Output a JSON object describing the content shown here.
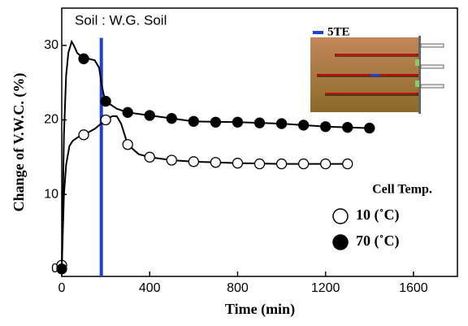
{
  "chart_data": {
    "type": "line",
    "annotation": "Soil : W.G. Soil",
    "inset_label": "5TE",
    "legend_title": "Cell Temp.",
    "xlabel": "Time (min)",
    "ylabel": "Change of V.W.C. (%)",
    "xlim": [
      0,
      1800
    ],
    "ylim": [
      -1,
      35
    ],
    "xticks": [
      0,
      400,
      800,
      1200,
      1600
    ],
    "yticks": [
      0,
      10,
      20,
      30
    ],
    "vline": {
      "x": 180,
      "color": "#1f3fd8"
    },
    "series": [
      {
        "name": "10 (˚C)",
        "marker": "open",
        "color": "#000000",
        "x": [
          0,
          100,
          200,
          300,
          400,
          500,
          600,
          700,
          800,
          900,
          1000,
          1100,
          1200,
          1300
        ],
        "values": [
          0.5,
          18,
          20,
          16.7,
          15,
          14.6,
          14.4,
          14.3,
          14.2,
          14.1,
          14.1,
          14.1,
          14.1,
          14.1
        ],
        "curve_x": [
          0,
          10,
          20,
          35,
          50,
          80,
          100,
          150,
          200,
          230,
          250,
          270,
          300,
          350,
          400,
          500,
          600,
          800,
          1000,
          1300
        ],
        "curve_values": [
          0,
          10,
          14,
          16.5,
          17.2,
          17.8,
          18,
          18.8,
          20,
          20.5,
          20.5,
          19.5,
          16.7,
          15.4,
          15,
          14.6,
          14.4,
          14.2,
          14.1,
          14.1
        ]
      },
      {
        "name": "70 (˚C)",
        "marker": "filled",
        "color": "#000000",
        "x": [
          0,
          100,
          200,
          300,
          400,
          500,
          600,
          700,
          800,
          900,
          1000,
          1100,
          1200,
          1300,
          1400
        ],
        "values": [
          0,
          28.2,
          22.5,
          21,
          20.6,
          20.2,
          19.8,
          19.7,
          19.7,
          19.6,
          19.5,
          19.3,
          19.1,
          19,
          18.9
        ],
        "curve_x": [
          0,
          10,
          20,
          30,
          45,
          55,
          70,
          90,
          110,
          150,
          170,
          180,
          190,
          200,
          250,
          300,
          400,
          500,
          600,
          800,
          1000,
          1200,
          1400
        ],
        "curve_values": [
          0,
          18,
          26,
          29,
          30.5,
          30,
          29,
          28.5,
          28.3,
          28,
          27,
          25,
          23.5,
          22.5,
          21.5,
          21,
          20.6,
          20.2,
          19.8,
          19.7,
          19.5,
          19.1,
          18.9
        ]
      }
    ]
  }
}
